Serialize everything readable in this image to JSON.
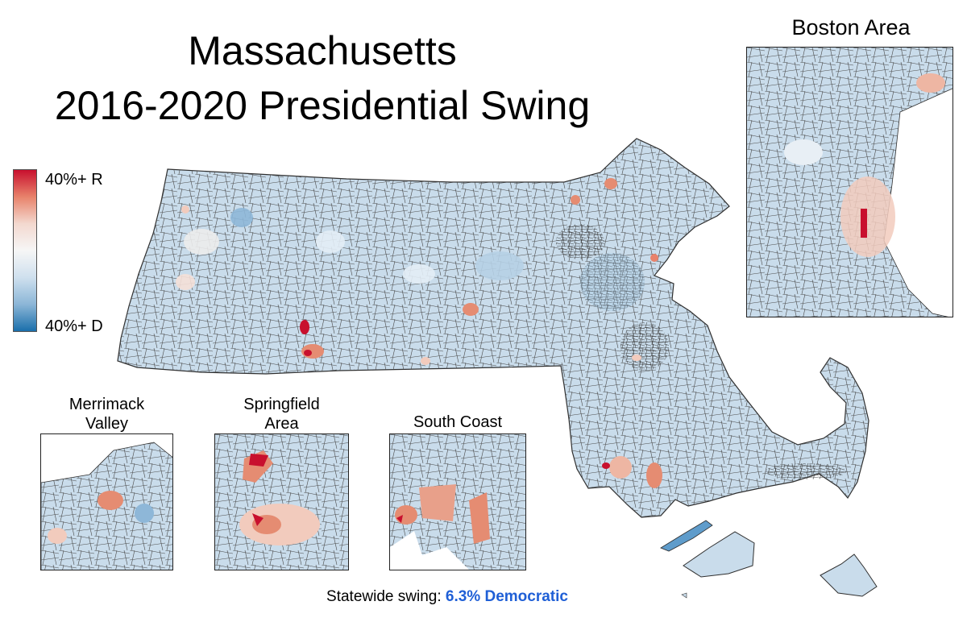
{
  "title": {
    "line1": "Massachusetts",
    "line2": "2016-2020 Presidential Swing"
  },
  "legend": {
    "top_label": "40%+ R",
    "bottom_label": "40%+ D",
    "colors": [
      "#c8102e",
      "#e8826b",
      "#f3d8cf",
      "#f6f6f6",
      "#cfe0ee",
      "#8cb6d7",
      "#1a6fab"
    ]
  },
  "insets": {
    "boston": {
      "title": "Boston Area"
    },
    "merrimack": {
      "title_line1": "Merrimack",
      "title_line2": "Valley"
    },
    "springfield": {
      "title_line1": "Springfield",
      "title_line2": "Area"
    },
    "south_coast": {
      "title": "South Coast"
    }
  },
  "footer": {
    "prefix": "Statewide swing: ",
    "value": "6.3% Democratic",
    "value_color": "#1f5fd6"
  },
  "colors": {
    "dem_light": "#d6e6f2",
    "dem_mid": "#a9c9e2",
    "dem_strong": "#5f9ccb",
    "rep_light": "#f2cbbd",
    "rep_mid": "#e58c72",
    "rep_strong": "#c8102e",
    "border": "#3a3a3a"
  }
}
